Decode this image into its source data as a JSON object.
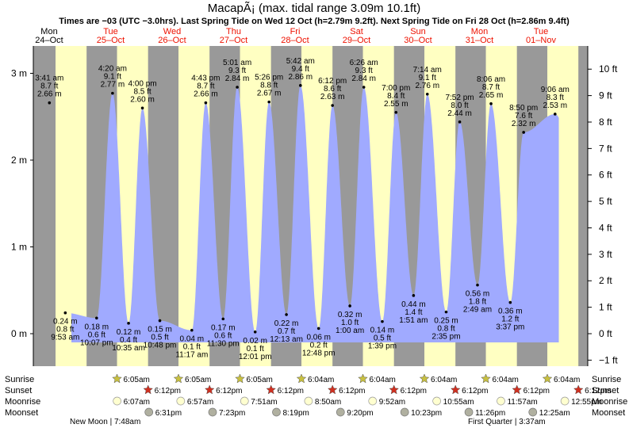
{
  "title": "MacapÃ¡ (max. tidal range 3.09m 10.1ft)",
  "subtitle": "Times are −03 (UTC −3.0hrs). Last Spring Tide on Wed 12 Oct (h=2.79m 9.2ft). Next Spring Tide on Fri 28 Oct (h=2.86m 9.4ft)",
  "colors": {
    "night": "#999999",
    "day": "#ffffc2",
    "tide": "#a0aaff",
    "day_header": "#000000",
    "weekend_header": "#ee1100",
    "sun_star": "#c8c040",
    "sunset_star": "#d03020",
    "moonrise": "#ffffd0",
    "moonset": "#b0b0a0"
  },
  "days": [
    {
      "dow": "Mon",
      "date": "24–Oct",
      "weekend": false
    },
    {
      "dow": "Tue",
      "date": "25–Oct",
      "weekend": true
    },
    {
      "dow": "Wed",
      "date": "26–Oct",
      "weekend": true
    },
    {
      "dow": "Thu",
      "date": "27–Oct",
      "weekend": true
    },
    {
      "dow": "Fri",
      "date": "28–Oct",
      "weekend": true
    },
    {
      "dow": "Sat",
      "date": "29–Oct",
      "weekend": true
    },
    {
      "dow": "Sun",
      "date": "30–Oct",
      "weekend": true
    },
    {
      "dow": "Mon",
      "date": "31–Oct",
      "weekend": true
    },
    {
      "dow": "Tue",
      "date": "01–Nov",
      "weekend": true
    }
  ],
  "row_labels": {
    "sunrise": "Sunrise",
    "sunset": "Sunset",
    "moonrise": "Moonrise",
    "moonset": "Moonset"
  },
  "moon_phases": {
    "new_moon": "New Moon | 7:48am",
    "first_quarter": "First Quarter | 3:37am"
  },
  "chart_data": {
    "type": "area",
    "series": [
      {
        "name": "high",
        "points": [
          {
            "d": 24,
            "time": "3:41 am",
            "ft": "8.7 ft",
            "m": "2.66 m",
            "value": 2.66
          },
          {
            "d": 25,
            "time": "4:00 pm",
            "ft": "8.5 ft",
            "m": "2.60 m",
            "value": 2.6
          },
          {
            "d": 25,
            "time": "4:20 am",
            "ft": "9.1 ft",
            "m": "2.77 m",
            "value": 2.77
          },
          {
            "d": 26,
            "time": "4:43 pm",
            "ft": "8.7 ft",
            "m": "2.66 m",
            "value": 2.66
          },
          {
            "d": 27,
            "time": "5:01 am",
            "ft": "9.3 ft",
            "m": "2.84 m",
            "value": 2.84
          },
          {
            "d": 27,
            "time": "5:26 pm",
            "ft": "8.8 ft",
            "m": "2.67 m",
            "value": 2.67
          },
          {
            "d": 28,
            "time": "5:42 am",
            "ft": "9.4 ft",
            "m": "2.86 m",
            "value": 2.86
          },
          {
            "d": 28,
            "time": "6:12 pm",
            "ft": "8.6 ft",
            "m": "2.63 m",
            "value": 2.63
          },
          {
            "d": 29,
            "time": "6:26 am",
            "ft": "9.3 ft",
            "m": "2.84 m",
            "value": 2.84
          },
          {
            "d": 29,
            "time": "7:00 pm",
            "ft": "8.4 ft",
            "m": "2.55 m",
            "value": 2.55
          },
          {
            "d": 30,
            "time": "7:14 am",
            "ft": "9.1 ft",
            "m": "2.76 m",
            "value": 2.76
          },
          {
            "d": 30,
            "time": "7:52 pm",
            "ft": "8.0 ft",
            "m": "2.44 m",
            "value": 2.44
          },
          {
            "d": 31,
            "time": "8:06 am",
            "ft": "8.7 ft",
            "m": "2.65 m",
            "value": 2.65
          },
          {
            "d": 31,
            "time": "8:50 pm",
            "ft": "7.6 ft",
            "m": "2.32 m",
            "value": 2.32
          },
          {
            "d": 32,
            "time": "9:06 am",
            "ft": "8.3 ft",
            "m": "2.53 m",
            "value": 2.53
          }
        ]
      },
      {
        "name": "low",
        "points": [
          {
            "d": 24,
            "time": "9:53 am",
            "ft": "0.8 ft",
            "m": "0.24 m",
            "value": 0.24
          },
          {
            "d": 24,
            "time": "10:07 pm",
            "ft": "0.6 ft",
            "m": "0.18 m",
            "value": 0.18
          },
          {
            "d": 25,
            "time": "10:35 am",
            "ft": "0.4 ft",
            "m": "0.12 m",
            "value": 0.12
          },
          {
            "d": 25,
            "time": "10:48 pm",
            "ft": "0.5 ft",
            "m": "0.15 m",
            "value": 0.15
          },
          {
            "d": 26,
            "time": "11:17 am",
            "ft": "0.1 ft",
            "m": "0.04 m",
            "value": 0.04
          },
          {
            "d": 26,
            "time": "11:30 pm",
            "ft": "0.6 ft",
            "m": "0.17 m",
            "value": 0.17
          },
          {
            "d": 27,
            "time": "12:01 pm",
            "ft": "0.1 ft",
            "m": "0.02 m",
            "value": 0.02
          },
          {
            "d": 28,
            "time": "12:13 am",
            "ft": "0.7 ft",
            "m": "0.22 m",
            "value": 0.22
          },
          {
            "d": 28,
            "time": "12:48 pm",
            "ft": "0.2 ft",
            "m": "0.06 m",
            "value": 0.06
          },
          {
            "d": 29,
            "time": "1:00 am",
            "ft": "1.0 ft",
            "m": "0.32 m",
            "value": 0.32
          },
          {
            "d": 29,
            "time": "1:39 pm",
            "ft": "0.5 ft",
            "m": "0.14 m",
            "value": 0.14
          },
          {
            "d": 30,
            "time": "1:51 am",
            "ft": "1.4 ft",
            "m": "0.44 m",
            "value": 0.44
          },
          {
            "d": 30,
            "time": "2:35 pm",
            "ft": "0.8 ft",
            "m": "0.25 m",
            "value": 0.25
          },
          {
            "d": 31,
            "time": "2:49 am",
            "ft": "1.8 ft",
            "m": "0.56 m",
            "value": 0.56
          },
          {
            "d": 31,
            "time": "3:37 pm",
            "ft": "1.2 ft",
            "m": "0.36 m",
            "value": 0.36
          }
        ]
      }
    ],
    "y_left_ticks": [
      "0 m",
      "1 m",
      "2 m",
      "3 m"
    ],
    "y_left_values": [
      0,
      1,
      2,
      3
    ],
    "y_right_ticks": [
      "−1 ft",
      "0 ft",
      "1 ft",
      "2 ft",
      "3 ft",
      "4 ft",
      "5 ft",
      "6 ft",
      "7 ft",
      "8 ft",
      "9 ft",
      "10 ft"
    ],
    "y_right_values": [
      -1,
      0,
      1,
      2,
      3,
      4,
      5,
      6,
      7,
      8,
      9,
      10
    ],
    "ylim_m": [
      -0.35,
      3.2
    ],
    "grid": false
  },
  "sun_moon": {
    "sunrise": [
      "6:05am",
      "6:05am",
      "6:05am",
      "6:04am",
      "6:04am",
      "6:04am",
      "6:04am",
      "6:04am"
    ],
    "sunset": [
      "6:12pm",
      "6:12pm",
      "6:12pm",
      "6:12pm",
      "6:12pm",
      "6:12pm",
      "6:12pm",
      "6:12pm"
    ],
    "moonrise": [
      "6:07am",
      "6:57am",
      "7:51am",
      "8:50am",
      "9:52am",
      "10:55am",
      "11:57am",
      "12:55pm"
    ],
    "moonset": [
      "6:31pm",
      "7:23pm",
      "8:19pm",
      "9:20pm",
      "10:23pm",
      "11:26pm",
      "12:25am"
    ]
  }
}
